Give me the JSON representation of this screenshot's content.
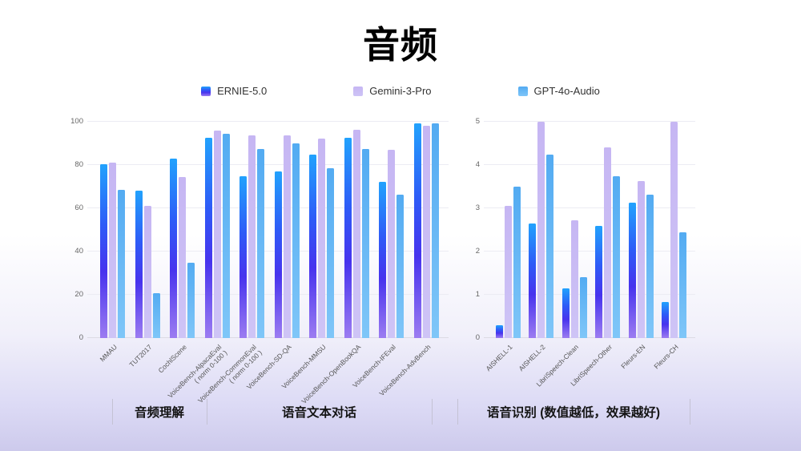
{
  "slide": {
    "title": "音频"
  },
  "legend": [
    {
      "name": "ERNIE-5.0"
    },
    {
      "name": "Gemini-3-Pro"
    },
    {
      "name": "GPT-4o-Audio"
    }
  ],
  "colors": {
    "series_gradients": [
      [
        "#22A2FD",
        "#2E5BF7",
        "#4733EE",
        "#9C7CF1"
      ],
      [
        "#C6B6F3",
        "#CEC4F6"
      ],
      [
        "#53ABF2",
        "#7FC6F8"
      ]
    ],
    "grid": "#ececf3",
    "axis_text": "#666666"
  },
  "chart_data": [
    {
      "type": "bar",
      "title": "音频理解 / 语音文本对话 benchmarks",
      "categories": [
        "MMAU",
        "TUT2017",
        "CochlScene",
        "VoiceBench-AlpacaEval\n( norm 0-100 )",
        "VoiceBench-CommonEval\n( norm 0-100 )",
        "VoiceBench-SD-QA",
        "VoiceBench-MMSU",
        "VoiceBench-OpenBookQA",
        "VoiceBench-IFEval",
        "VoiceBench-AdvBench"
      ],
      "series": [
        {
          "name": "ERNIE-5.0",
          "values": [
            80.3,
            68.0,
            83.0,
            92.5,
            74.7,
            77.0,
            84.8,
            92.6,
            72.2,
            99.4
          ]
        },
        {
          "name": "Gemini-3-Pro",
          "values": [
            81.0,
            61.3,
            74.5,
            96.0,
            93.6,
            93.8,
            92.1,
            96.2,
            87.0,
            98.3
          ]
        },
        {
          "name": "GPT-4o-Audio",
          "values": [
            68.5,
            20.8,
            35.0,
            94.5,
            87.5,
            90.0,
            78.6,
            87.5,
            66.3,
            99.2
          ]
        }
      ],
      "ylim": [
        0,
        100
      ],
      "yticks": [
        0,
        20,
        40,
        60,
        80,
        100
      ],
      "grid": true,
      "legend_position": "top"
    },
    {
      "type": "bar",
      "title": "语音识别 (数值越低，效果越好)",
      "categories": [
        "AISHELL-1",
        "AISHELL-2",
        "LibriSpeech-Clean",
        "LibriSpeech-Other",
        "Fleurs-EN",
        "Fleurs-CH"
      ],
      "series": [
        {
          "name": "ERNIE-5.0",
          "values": [
            0.3,
            2.65,
            1.15,
            2.6,
            3.13,
            0.83
          ]
        },
        {
          "name": "Gemini-3-Pro",
          "values": [
            3.05,
            5.0,
            2.73,
            4.4,
            3.63,
            5.0
          ]
        },
        {
          "name": "GPT-4o-Audio",
          "values": [
            3.5,
            4.25,
            1.4,
            3.75,
            3.32,
            2.45
          ]
        }
      ],
      "ylim": [
        0,
        5
      ],
      "yticks": [
        0,
        1,
        2,
        3,
        4,
        5
      ],
      "grid": true,
      "legend_position": "top"
    }
  ],
  "sections": [
    {
      "label": "音频理解"
    },
    {
      "label": "语音文本对话"
    },
    {
      "label": "语音识别 (数值越低，效果越好)"
    }
  ]
}
